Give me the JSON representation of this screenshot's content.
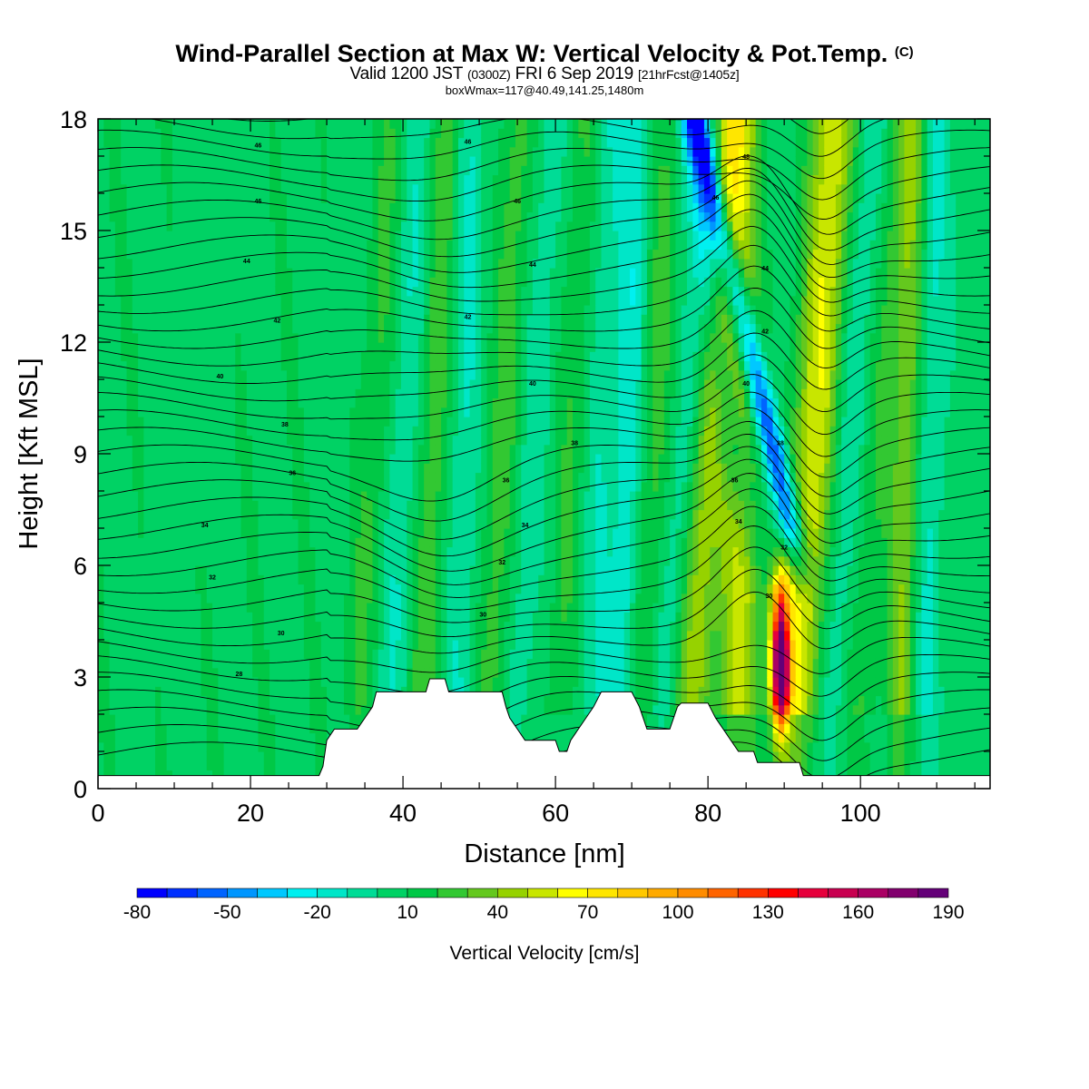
{
  "header": {
    "title": "Wind-Parallel Section at Max W: Vertical Velocity & Pot.Temp.",
    "title_mark": "(C)",
    "valid_prefix": "Valid 1200 JST",
    "valid_utc": "(0300Z)",
    "valid_date": "FRI 6 Sep 2019",
    "forecast_info": "[21hrFcst@1405z]",
    "box_info": "boxWmax=117@40.49,141.25,1480m"
  },
  "chart_data": {
    "type": "heatmap",
    "xlabel": "Distance [nm]",
    "ylabel": "Height [Kft MSL]",
    "xlim": [
      0,
      117
    ],
    "ylim": [
      0,
      18
    ],
    "x_ticks": [
      0,
      20,
      40,
      60,
      80,
      100
    ],
    "y_ticks": [
      0,
      3,
      6,
      9,
      12,
      15,
      18
    ],
    "colorbar": {
      "label": "Vertical Velocity [cm/s]",
      "tick_labels": [
        -80,
        -50,
        -20,
        10,
        40,
        70,
        100,
        130,
        160,
        190
      ],
      "levels": [
        -80,
        -70,
        -60,
        -50,
        -40,
        -30,
        -20,
        -10,
        0,
        10,
        20,
        30,
        40,
        50,
        60,
        70,
        80,
        90,
        100,
        110,
        120,
        130,
        140,
        150,
        160,
        170,
        180,
        190
      ],
      "colors": [
        "#0000ff",
        "#0030ff",
        "#0064ff",
        "#0096ff",
        "#00c8ff",
        "#00f0f0",
        "#00e6c8",
        "#00dc96",
        "#00d264",
        "#00c846",
        "#32c832",
        "#64c81e",
        "#96d200",
        "#c8e600",
        "#ffff00",
        "#ffe600",
        "#ffc800",
        "#ffaa00",
        "#ff8c00",
        "#ff6400",
        "#ff3200",
        "#ff0000",
        "#e6003c",
        "#c80050",
        "#aa0064",
        "#82006e",
        "#640078"
      ]
    },
    "terrain": [
      [
        0,
        0.35
      ],
      [
        29,
        0.35
      ],
      [
        29.5,
        0.6
      ],
      [
        30,
        1.3
      ],
      [
        31,
        1.6
      ],
      [
        34,
        1.6
      ],
      [
        35,
        1.9
      ],
      [
        36,
        2.2
      ],
      [
        36.5,
        2.6
      ],
      [
        43,
        2.6
      ],
      [
        43.5,
        2.95
      ],
      [
        45.5,
        2.95
      ],
      [
        46,
        2.6
      ],
      [
        53,
        2.6
      ],
      [
        53.5,
        2.2
      ],
      [
        54,
        1.9
      ],
      [
        55,
        1.6
      ],
      [
        56,
        1.3
      ],
      [
        60,
        1.3
      ],
      [
        60.5,
        1.0
      ],
      [
        61.5,
        1.0
      ],
      [
        62,
        1.3
      ],
      [
        63,
        1.6
      ],
      [
        64,
        1.9
      ],
      [
        65,
        2.2
      ],
      [
        66,
        2.6
      ],
      [
        70,
        2.6
      ],
      [
        71,
        2.2
      ],
      [
        71.5,
        1.9
      ],
      [
        72,
        1.6
      ],
      [
        75,
        1.6
      ],
      [
        75.5,
        1.9
      ],
      [
        76,
        2.2
      ],
      [
        76.5,
        2.3
      ],
      [
        80,
        2.3
      ],
      [
        81,
        1.9
      ],
      [
        82,
        1.6
      ],
      [
        83,
        1.3
      ],
      [
        84,
        1.0
      ],
      [
        86,
        1.0
      ],
      [
        86.5,
        0.7
      ],
      [
        92,
        0.7
      ],
      [
        92.5,
        0.35
      ],
      [
        117,
        0.35
      ]
    ],
    "theta_labels": [
      {
        "x": 21,
        "y": 17.3,
        "text": "46"
      },
      {
        "x": 48.5,
        "y": 17.4,
        "text": "46"
      },
      {
        "x": 85,
        "y": 17.0,
        "text": "48"
      },
      {
        "x": 21,
        "y": 15.8,
        "text": "46"
      },
      {
        "x": 55,
        "y": 15.8,
        "text": "46"
      },
      {
        "x": 81,
        "y": 15.9,
        "text": "46"
      },
      {
        "x": 19.5,
        "y": 14.2,
        "text": "44"
      },
      {
        "x": 57,
        "y": 14.1,
        "text": "44"
      },
      {
        "x": 87.5,
        "y": 14.0,
        "text": "44"
      },
      {
        "x": 23.5,
        "y": 12.6,
        "text": "42"
      },
      {
        "x": 48.5,
        "y": 12.7,
        "text": "42"
      },
      {
        "x": 87.5,
        "y": 12.3,
        "text": "42"
      },
      {
        "x": 16,
        "y": 11.1,
        "text": "40"
      },
      {
        "x": 57,
        "y": 10.9,
        "text": "40"
      },
      {
        "x": 85,
        "y": 10.9,
        "text": "40"
      },
      {
        "x": 24.5,
        "y": 9.8,
        "text": "38"
      },
      {
        "x": 62.5,
        "y": 9.3,
        "text": "38"
      },
      {
        "x": 89.5,
        "y": 9.3,
        "text": "38"
      },
      {
        "x": 25.5,
        "y": 8.5,
        "text": "36"
      },
      {
        "x": 53.5,
        "y": 8.3,
        "text": "36"
      },
      {
        "x": 83.5,
        "y": 8.3,
        "text": "36"
      },
      {
        "x": 14,
        "y": 7.1,
        "text": "34"
      },
      {
        "x": 56,
        "y": 7.1,
        "text": "34"
      },
      {
        "x": 84,
        "y": 7.2,
        "text": "34"
      },
      {
        "x": 15,
        "y": 5.7,
        "text": "32"
      },
      {
        "x": 53,
        "y": 6.1,
        "text": "32"
      },
      {
        "x": 90,
        "y": 6.5,
        "text": "32"
      },
      {
        "x": 24,
        "y": 4.2,
        "text": "30"
      },
      {
        "x": 50.5,
        "y": 4.7,
        "text": "30"
      },
      {
        "x": 88,
        "y": 5.2,
        "text": "30"
      },
      {
        "x": 18.5,
        "y": 3.1,
        "text": "28"
      }
    ]
  }
}
